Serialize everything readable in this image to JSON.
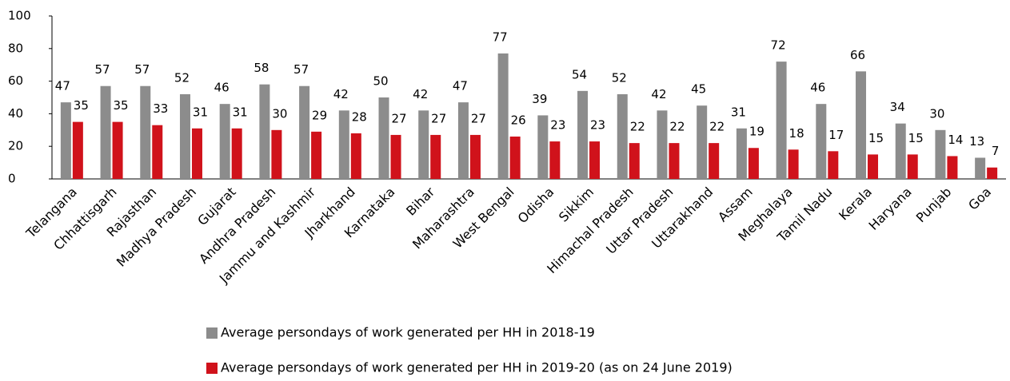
{
  "chart_data": {
    "type": "bar",
    "categories": [
      "Telangana",
      "Chhattisgarh",
      "Rajasthan",
      "Madhya Pradesh",
      "Gujarat",
      "Andhra Pradesh",
      "Jammu and Kashmir",
      "Jharkhand",
      "Karnataka",
      "Bihar",
      "Maharashtra",
      "West Bengal",
      "Odisha",
      "Sikkim",
      "Himachal Pradesh",
      "Uttar Pradesh",
      "Uttarakhand",
      "Assam",
      "Meghalaya",
      "Tamil Nadu",
      "Kerala",
      "Haryana",
      "Punjab",
      "Goa"
    ],
    "series": [
      {
        "name": "Average persondays of work generated per HH in 2018-19",
        "color": "#8c8c8c",
        "values": [
          47,
          57,
          57,
          52,
          46,
          58,
          57,
          42,
          50,
          42,
          47,
          77,
          39,
          54,
          52,
          42,
          45,
          31,
          72,
          46,
          66,
          34,
          30,
          13
        ]
      },
      {
        "name": "Average persondays of work generated per HH in 2019-20 (as on 24 June 2019)",
        "color": "#d0121b",
        "values": [
          35,
          35,
          33,
          31,
          31,
          30,
          29,
          28,
          27,
          27,
          27,
          26,
          23,
          23,
          22,
          22,
          22,
          19,
          18,
          17,
          15,
          15,
          14,
          7
        ]
      }
    ],
    "ylim": [
      0,
      100
    ],
    "yticks": [
      0,
      20,
      40,
      60,
      80,
      100
    ],
    "grid": false,
    "legend": "bottom"
  }
}
